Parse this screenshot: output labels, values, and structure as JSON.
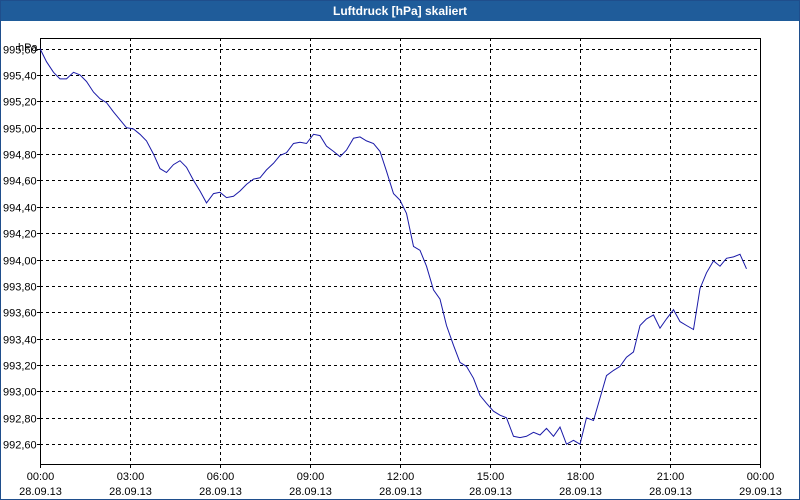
{
  "window": {
    "title": "Luftdruck [hPa] skaliert"
  },
  "colors": {
    "title_bar": "#1f5c9a",
    "series": "#1a1aa8",
    "grid": "#000000"
  },
  "chart_data": {
    "type": "line",
    "title": "Luftdruck [hPa] skaliert",
    "ylabel": "hPa",
    "xlabel": "",
    "grid": true,
    "grid_style": "dashed",
    "xlim": [
      "28.09.13 00:00",
      "29.09.13 00:00"
    ],
    "ylim": [
      992.45,
      995.68
    ],
    "y_ticks": [
      "995,60",
      "995,40",
      "995,20",
      "995,00",
      "994,80",
      "994,60",
      "994,40",
      "994,20",
      "994,00",
      "993,80",
      "993,60",
      "993,40",
      "993,20",
      "993,00",
      "992,80",
      "992,60"
    ],
    "x_ticks": [
      {
        "time": "00:00",
        "date": "28.09.13"
      },
      {
        "time": "03:00",
        "date": "28.09.13"
      },
      {
        "time": "06:00",
        "date": "28.09.13"
      },
      {
        "time": "09:00",
        "date": "28.09.13"
      },
      {
        "time": "12:00",
        "date": "28.09.13"
      },
      {
        "time": "15:00",
        "date": "28.09.13"
      },
      {
        "time": "18:00",
        "date": "28.09.13"
      },
      {
        "time": "21:00",
        "date": "28.09.13"
      },
      {
        "time": "00:00",
        "date": "29.09.13"
      }
    ],
    "series": [
      {
        "color": "#1a1aa8",
        "points": [
          [
            "28.09.13 00:00",
            995.6
          ],
          [
            "28.09.13 00:13",
            995.5
          ],
          [
            "28.09.13 00:27",
            995.42
          ],
          [
            "28.09.13 00:40",
            995.37
          ],
          [
            "28.09.13 00:53",
            995.37
          ],
          [
            "28.09.13 01:07",
            995.42
          ],
          [
            "28.09.13 01:20",
            995.4
          ],
          [
            "28.09.13 01:33",
            995.35
          ],
          [
            "28.09.13 01:47",
            995.27
          ],
          [
            "28.09.13 02:00",
            995.22
          ],
          [
            "28.09.13 02:13",
            995.19
          ],
          [
            "28.09.13 02:27",
            995.12
          ],
          [
            "28.09.13 02:40",
            995.06
          ],
          [
            "28.09.13 02:53",
            995.0
          ],
          [
            "28.09.13 03:07",
            994.99
          ],
          [
            "28.09.13 03:20",
            994.95
          ],
          [
            "28.09.13 03:33",
            994.9
          ],
          [
            "28.09.13 03:47",
            994.8
          ],
          [
            "28.09.13 04:00",
            994.69
          ],
          [
            "28.09.13 04:13",
            994.66
          ],
          [
            "28.09.13 04:27",
            994.72
          ],
          [
            "28.09.13 04:40",
            994.75
          ],
          [
            "28.09.13 04:53",
            994.7
          ],
          [
            "28.09.13 05:07",
            994.6
          ],
          [
            "28.09.13 05:20",
            994.52
          ],
          [
            "28.09.13 05:33",
            994.43
          ],
          [
            "28.09.13 05:47",
            994.5
          ],
          [
            "28.09.13 06:00",
            994.51
          ],
          [
            "28.09.13 06:13",
            994.47
          ],
          [
            "28.09.13 06:27",
            994.48
          ],
          [
            "28.09.13 06:40",
            994.52
          ],
          [
            "28.09.13 06:53",
            994.57
          ],
          [
            "28.09.13 07:07",
            994.61
          ],
          [
            "28.09.13 07:20",
            994.62
          ],
          [
            "28.09.13 07:33",
            994.68
          ],
          [
            "28.09.13 07:47",
            994.73
          ],
          [
            "28.09.13 08:00",
            994.79
          ],
          [
            "28.09.13 08:13",
            994.81
          ],
          [
            "28.09.13 08:27",
            994.88
          ],
          [
            "28.09.13 08:40",
            994.89
          ],
          [
            "28.09.13 08:53",
            994.88
          ],
          [
            "28.09.13 09:07",
            994.95
          ],
          [
            "28.09.13 09:20",
            994.94
          ],
          [
            "28.09.13 09:33",
            994.86
          ],
          [
            "28.09.13 09:47",
            994.82
          ],
          [
            "28.09.13 10:00",
            994.78
          ],
          [
            "28.09.13 10:13",
            994.83
          ],
          [
            "28.09.13 10:27",
            994.92
          ],
          [
            "28.09.13 10:40",
            994.93
          ],
          [
            "28.09.13 10:53",
            994.9
          ],
          [
            "28.09.13 11:07",
            994.88
          ],
          [
            "28.09.13 11:20",
            994.82
          ],
          [
            "28.09.13 11:33",
            994.67
          ],
          [
            "28.09.13 11:47",
            994.5
          ],
          [
            "28.09.13 12:00",
            994.45
          ],
          [
            "28.09.13 12:13",
            994.35
          ],
          [
            "28.09.13 12:27",
            994.1
          ],
          [
            "28.09.13 12:40",
            994.07
          ],
          [
            "28.09.13 12:53",
            993.95
          ],
          [
            "28.09.13 13:07",
            993.77
          ],
          [
            "28.09.13 13:20",
            993.7
          ],
          [
            "28.09.13 13:33",
            993.5
          ],
          [
            "28.09.13 13:47",
            993.35
          ],
          [
            "28.09.13 14:00",
            993.22
          ],
          [
            "28.09.13 14:13",
            993.19
          ],
          [
            "28.09.13 14:27",
            993.1
          ],
          [
            "28.09.13 14:40",
            992.97
          ],
          [
            "28.09.13 14:53",
            992.91
          ],
          [
            "28.09.13 15:07",
            992.85
          ],
          [
            "28.09.13 15:20",
            992.82
          ],
          [
            "28.09.13 15:33",
            992.8
          ],
          [
            "28.09.13 15:47",
            992.66
          ],
          [
            "28.09.13 16:00",
            992.65
          ],
          [
            "28.09.13 16:13",
            992.66
          ],
          [
            "28.09.13 16:27",
            992.69
          ],
          [
            "28.09.13 16:40",
            992.67
          ],
          [
            "28.09.13 16:53",
            992.72
          ],
          [
            "28.09.13 17:07",
            992.66
          ],
          [
            "28.09.13 17:20",
            992.73
          ],
          [
            "28.09.13 17:33",
            992.6
          ],
          [
            "28.09.13 17:47",
            992.63
          ],
          [
            "28.09.13 18:00",
            992.6
          ],
          [
            "28.09.13 18:13",
            992.8
          ],
          [
            "28.09.13 18:27",
            992.78
          ],
          [
            "28.09.13 18:40",
            992.95
          ],
          [
            "28.09.13 18:53",
            993.12
          ],
          [
            "28.09.13 19:07",
            993.16
          ],
          [
            "28.09.13 19:20",
            993.19
          ],
          [
            "28.09.13 19:33",
            993.26
          ],
          [
            "28.09.13 19:47",
            993.3
          ],
          [
            "28.09.13 20:00",
            993.5
          ],
          [
            "28.09.13 20:13",
            993.55
          ],
          [
            "28.09.13 20:27",
            993.58
          ],
          [
            "28.09.13 20:40",
            993.48
          ],
          [
            "28.09.13 20:53",
            993.55
          ],
          [
            "28.09.13 21:07",
            993.62
          ],
          [
            "28.09.13 21:20",
            993.53
          ],
          [
            "28.09.13 21:33",
            993.5
          ],
          [
            "28.09.13 21:47",
            993.47
          ],
          [
            "28.09.13 22:00",
            993.78
          ],
          [
            "28.09.13 22:13",
            993.9
          ],
          [
            "28.09.13 22:27",
            993.99
          ],
          [
            "28.09.13 22:40",
            993.95
          ],
          [
            "28.09.13 22:53",
            994.01
          ],
          [
            "28.09.13 23:07",
            994.02
          ],
          [
            "28.09.13 23:20",
            994.04
          ],
          [
            "28.09.13 23:33",
            993.93
          ]
        ]
      }
    ]
  }
}
